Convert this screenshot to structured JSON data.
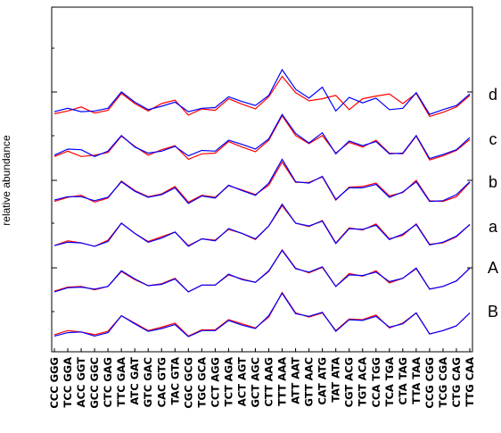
{
  "chart_data": {
    "type": "line",
    "ylabel": "relative abundance",
    "grid": false,
    "legend": "right",
    "row_labels": [
      "d",
      "c",
      "b",
      "a",
      "A",
      "B"
    ],
    "colors": {
      "red": "#ff0000",
      "blue": "#0000ff",
      "black": "#000000"
    },
    "categories": [
      "CCC GGG",
      "TCC GGA",
      "ACC GGT",
      "GCC GGC",
      "CTC GAG",
      "TTC GAA",
      "ATC GAT",
      "GTC GAC",
      "CAC GTG",
      "TAC GTA",
      "CGC GCG",
      "TGC GCA",
      "CCT AGG",
      "TCT AGA",
      "ACT AGT",
      "GCT AGC",
      "CTT AAG",
      "TTT AAA",
      "ATT AAT",
      "GTT AAC",
      "CAT ATG",
      "TAT ATA",
      "CGT ACG",
      "TGT ACA",
      "CCA TGG",
      "TCA TGA",
      "CTA TAG",
      "TTA TAA",
      "CCG CGG",
      "TCG CGA",
      "CTG CAG",
      "TTG CAA"
    ],
    "rows": [
      {
        "label": "d",
        "red": [
          0.28,
          0.36,
          0.48,
          0.3,
          0.38,
          0.88,
          0.58,
          0.36,
          0.58,
          0.68,
          0.24,
          0.42,
          0.38,
          0.72,
          0.56,
          0.42,
          0.78,
          1.38,
          0.9,
          0.66,
          0.72,
          0.82,
          0.4,
          0.72,
          0.8,
          0.86,
          0.58,
          0.88,
          0.2,
          0.32,
          0.48,
          0.82
        ],
        "blue": [
          0.34,
          0.44,
          0.34,
          0.36,
          0.44,
          0.92,
          0.62,
          0.4,
          0.5,
          0.62,
          0.34,
          0.44,
          0.46,
          0.78,
          0.64,
          0.52,
          0.82,
          1.58,
          1.0,
          0.74,
          1.06,
          0.36,
          0.76,
          0.6,
          0.74,
          0.4,
          0.44,
          0.9,
          0.26,
          0.4,
          0.52,
          0.86
        ]
      },
      {
        "label": "c",
        "red": [
          0.32,
          0.48,
          0.32,
          0.36,
          0.44,
          0.92,
          0.62,
          0.36,
          0.52,
          0.64,
          0.24,
          0.4,
          0.42,
          0.76,
          0.6,
          0.46,
          0.8,
          1.52,
          0.94,
          0.7,
          0.94,
          0.42,
          0.74,
          0.6,
          0.8,
          0.42,
          0.4,
          0.92,
          0.22,
          0.34,
          0.5,
          0.82
        ],
        "blue": [
          0.36,
          0.54,
          0.52,
          0.32,
          0.48,
          0.94,
          0.6,
          0.42,
          0.48,
          0.62,
          0.34,
          0.5,
          0.48,
          0.8,
          0.68,
          0.54,
          0.84,
          1.56,
          1.0,
          0.72,
          1.02,
          0.4,
          0.78,
          0.64,
          0.76,
          0.4,
          0.42,
          0.94,
          0.26,
          0.38,
          0.52,
          0.88
        ]
      },
      {
        "label": "b",
        "red": [
          0.3,
          0.42,
          0.48,
          0.28,
          0.4,
          0.9,
          0.62,
          0.44,
          0.52,
          0.74,
          0.28,
          0.48,
          0.42,
          0.76,
          0.64,
          0.5,
          0.78,
          1.46,
          0.86,
          0.86,
          1.02,
          0.34,
          0.72,
          0.74,
          0.84,
          0.46,
          0.56,
          0.92,
          0.32,
          0.3,
          0.44,
          0.86
        ],
        "blue": [
          0.34,
          0.44,
          0.44,
          0.32,
          0.42,
          0.88,
          0.6,
          0.42,
          0.5,
          0.7,
          0.24,
          0.46,
          0.4,
          0.78,
          0.62,
          0.48,
          0.84,
          1.54,
          0.88,
          0.84,
          1.04,
          0.36,
          0.7,
          0.7,
          0.8,
          0.42,
          0.58,
          0.88,
          0.3,
          0.32,
          0.5,
          0.88
        ]
      },
      {
        "label": "a",
        "red": [
          0.3,
          0.44,
          0.38,
          0.28,
          0.46,
          0.96,
          0.66,
          0.42,
          0.56,
          0.7,
          0.3,
          0.5,
          0.46,
          0.78,
          0.66,
          0.48,
          0.88,
          1.48,
          0.96,
          0.86,
          1.04,
          0.38,
          0.82,
          0.76,
          0.94,
          0.5,
          0.6,
          0.94,
          0.34,
          0.38,
          0.56,
          0.92
        ],
        "blue": [
          0.3,
          0.4,
          0.38,
          0.28,
          0.42,
          0.96,
          0.66,
          0.4,
          0.52,
          0.7,
          0.28,
          0.5,
          0.44,
          0.8,
          0.66,
          0.5,
          0.88,
          1.52,
          0.96,
          0.88,
          1.02,
          0.36,
          0.8,
          0.78,
          0.9,
          0.48,
          0.64,
          0.92,
          0.32,
          0.4,
          0.58,
          0.92
        ]
      },
      {
        "label": "A",
        "red": [
          0.26,
          0.38,
          0.4,
          0.3,
          0.4,
          0.84,
          0.6,
          0.42,
          0.48,
          0.64,
          0.24,
          0.44,
          0.44,
          0.74,
          0.62,
          0.52,
          0.84,
          1.48,
          0.94,
          0.8,
          0.96,
          0.4,
          0.78,
          0.7,
          0.86,
          0.5,
          0.64,
          0.92,
          0.32,
          0.4,
          0.56,
          0.94
        ],
        "blue": [
          0.24,
          0.36,
          0.38,
          0.32,
          0.4,
          0.86,
          0.62,
          0.42,
          0.46,
          0.62,
          0.24,
          0.44,
          0.44,
          0.76,
          0.6,
          0.52,
          0.86,
          1.46,
          0.92,
          0.82,
          0.98,
          0.4,
          0.74,
          0.72,
          0.82,
          0.54,
          0.64,
          0.94,
          0.32,
          0.4,
          0.56,
          0.94
        ]
      },
      {
        "label": "B",
        "red": [
          0.28,
          0.4,
          0.36,
          0.28,
          0.38,
          0.84,
          0.62,
          0.4,
          0.5,
          0.62,
          0.24,
          0.42,
          0.42,
          0.72,
          0.6,
          0.48,
          0.8,
          1.52,
          0.92,
          0.8,
          0.92,
          0.4,
          0.74,
          0.72,
          0.86,
          0.48,
          0.62,
          0.92,
          0.3,
          0.4,
          0.54,
          0.92
        ],
        "blue": [
          0.24,
          0.34,
          0.36,
          0.24,
          0.34,
          0.84,
          0.6,
          0.38,
          0.46,
          0.58,
          0.22,
          0.4,
          0.4,
          0.7,
          0.56,
          0.46,
          0.84,
          1.5,
          0.9,
          0.82,
          0.94,
          0.38,
          0.72,
          0.7,
          0.82,
          0.5,
          0.6,
          0.92,
          0.3,
          0.4,
          0.54,
          0.92
        ]
      }
    ]
  }
}
